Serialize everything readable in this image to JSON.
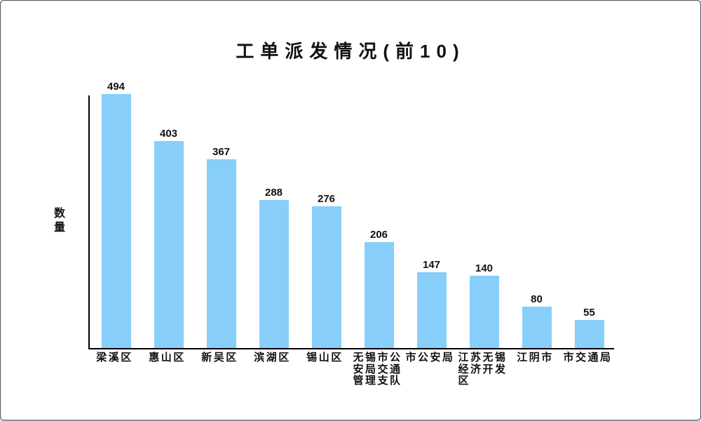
{
  "title": "工单派发情况(前10)",
  "y_axis_label": "数量",
  "colors": {
    "bar": "#87CEFA",
    "axis": "#000000",
    "text": "#111111",
    "background": "#FFFFFF",
    "panel_border": "#555555"
  },
  "chart_data": {
    "type": "bar",
    "title": "工单派发情况(前10)",
    "xlabel": "",
    "ylabel": "数量",
    "categories": [
      "梁溪区",
      "惠山区",
      "新吴区",
      "滨湖区",
      "锡山区",
      "无锡市公安局交通管理支队",
      "市公安局",
      "江苏无锡经济开发区",
      "江阴市",
      "市交通局"
    ],
    "values": [
      494,
      403,
      367,
      288,
      276,
      206,
      147,
      140,
      80,
      55
    ],
    "bar_value_labels": [
      "494",
      "403",
      "367",
      "288",
      "276",
      "206",
      "147",
      "140",
      "80",
      "55"
    ],
    "xlabels_display": [
      "梁溪区",
      "惠山区",
      "新吴区",
      "滨湖区",
      "锡山区",
      "无锡市公\n安局交通\n管理支队",
      "市公安局",
      "江苏无锡\n经济开发\n区",
      "江阴市",
      "市交通局"
    ],
    "ylim": [
      0,
      494
    ],
    "grid": false,
    "legend": false,
    "bar_color": "#87CEFA"
  }
}
